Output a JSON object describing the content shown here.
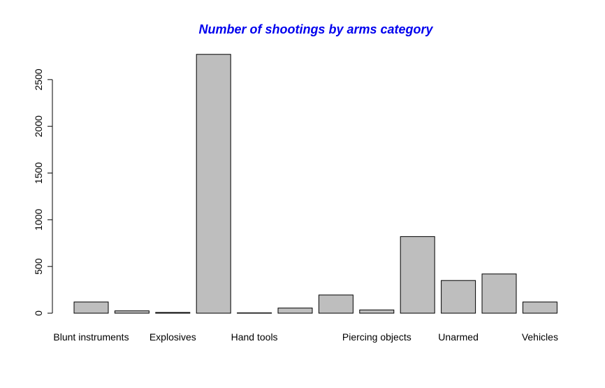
{
  "chart_data": {
    "type": "bar",
    "title": "Number of shootings by arms category",
    "xlabel": "",
    "ylabel": "",
    "categories": [
      "Blunt instruments",
      "",
      "Explosives",
      "",
      "Hand tools",
      "",
      "",
      "Piercing objects",
      "",
      "Unarmed",
      "",
      "Vehicles"
    ],
    "values": [
      120,
      25,
      8,
      2770,
      2,
      55,
      195,
      35,
      820,
      350,
      420,
      120
    ],
    "yticks": [
      0,
      500,
      1000,
      1500,
      2000,
      2500
    ],
    "ylim": [
      0,
      2770
    ],
    "grid": false,
    "legend": "none",
    "colors": {
      "bar_fill": "#bebebe",
      "bar_stroke": "#000000",
      "title": "#0000ee",
      "axis": "#000000"
    }
  }
}
